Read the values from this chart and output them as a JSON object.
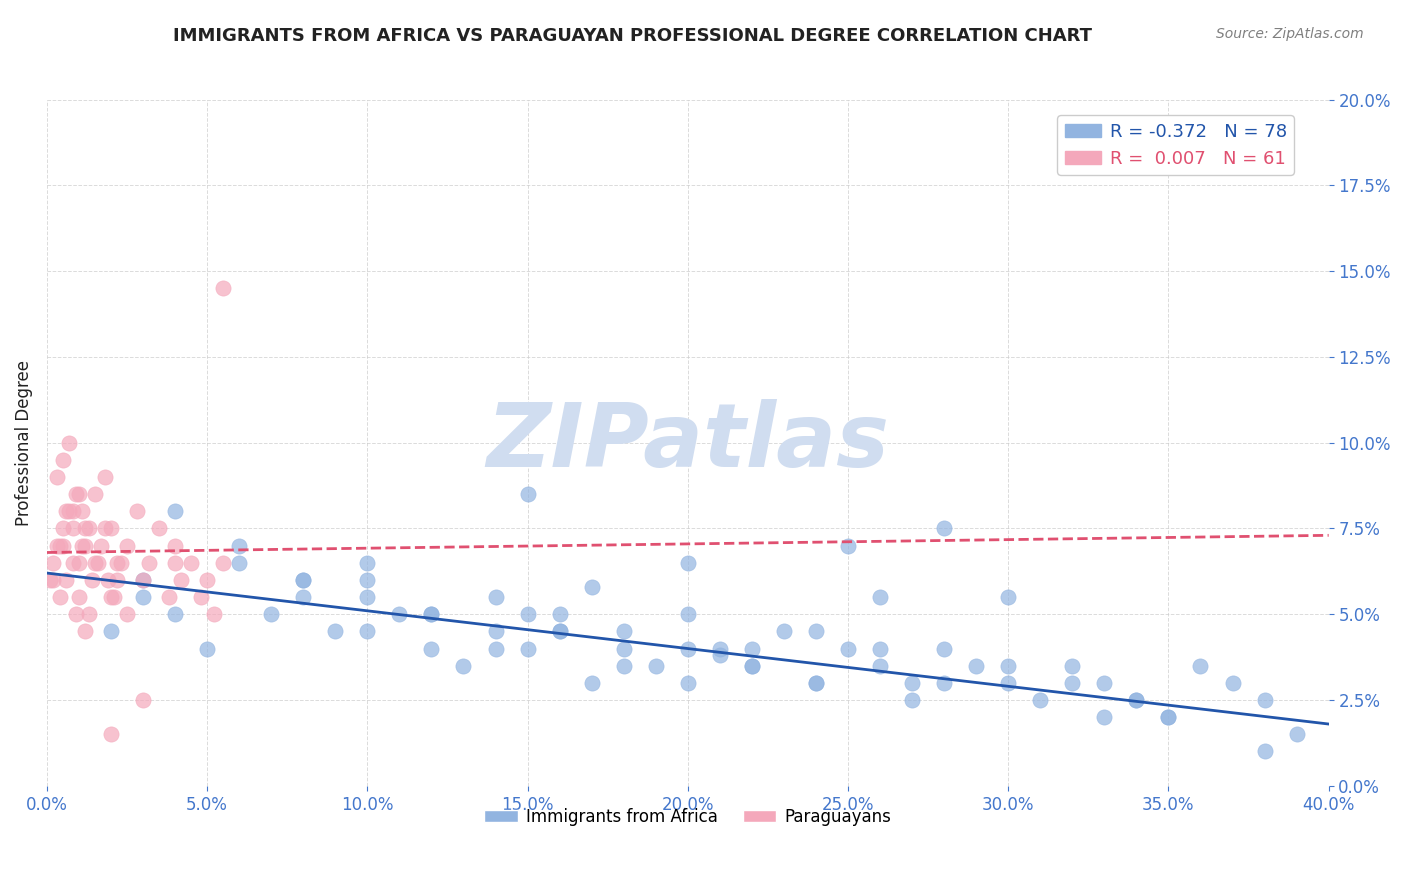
{
  "title": "IMMIGRANTS FROM AFRICA VS PARAGUAYAN PROFESSIONAL DEGREE CORRELATION CHART",
  "source": "Source: ZipAtlas.com",
  "xlabel_ticks": [
    "0.0%",
    "40.0%"
  ],
  "ylabel_label": "Professional Degree",
  "legend_blue_label": "Immigrants from Africa",
  "legend_pink_label": "Paraguayans",
  "blue_R": -0.372,
  "blue_N": 78,
  "pink_R": 0.007,
  "pink_N": 61,
  "xmin": 0.0,
  "xmax": 0.4,
  "ymin": 0.0,
  "ymax": 0.2,
  "blue_color": "#92b4e0",
  "pink_color": "#f4a8bb",
  "blue_line_color": "#2255aa",
  "pink_line_color": "#e05070",
  "watermark_color": "#d0ddf0",
  "background_color": "#ffffff",
  "grid_color": "#cccccc",
  "title_color": "#222222",
  "axis_label_color": "#4477cc",
  "blue_scatter_x": [
    0.02,
    0.03,
    0.05,
    0.07,
    0.08,
    0.09,
    0.1,
    0.11,
    0.12,
    0.13,
    0.14,
    0.15,
    0.15,
    0.16,
    0.17,
    0.18,
    0.19,
    0.2,
    0.21,
    0.22,
    0.23,
    0.24,
    0.25,
    0.26,
    0.27,
    0.28,
    0.29,
    0.3,
    0.31,
    0.32,
    0.33,
    0.34,
    0.35,
    0.36,
    0.37,
    0.38,
    0.39,
    0.03,
    0.04,
    0.06,
    0.08,
    0.1,
    0.12,
    0.14,
    0.16,
    0.18,
    0.2,
    0.22,
    0.24,
    0.26,
    0.04,
    0.06,
    0.08,
    0.1,
    0.12,
    0.14,
    0.16,
    0.18,
    0.2,
    0.22,
    0.24,
    0.26,
    0.28,
    0.3,
    0.32,
    0.34,
    0.15,
    0.25,
    0.35,
    0.28,
    0.2,
    0.3,
    0.38,
    0.1,
    0.21,
    0.33,
    0.17,
    0.27
  ],
  "blue_scatter_y": [
    0.045,
    0.055,
    0.04,
    0.05,
    0.06,
    0.045,
    0.055,
    0.05,
    0.04,
    0.035,
    0.045,
    0.05,
    0.04,
    0.045,
    0.03,
    0.04,
    0.035,
    0.03,
    0.04,
    0.035,
    0.045,
    0.03,
    0.04,
    0.035,
    0.025,
    0.03,
    0.035,
    0.03,
    0.025,
    0.035,
    0.03,
    0.025,
    0.02,
    0.035,
    0.03,
    0.025,
    0.015,
    0.06,
    0.05,
    0.065,
    0.055,
    0.045,
    0.05,
    0.04,
    0.045,
    0.035,
    0.04,
    0.035,
    0.03,
    0.04,
    0.08,
    0.07,
    0.06,
    0.065,
    0.05,
    0.055,
    0.05,
    0.045,
    0.05,
    0.04,
    0.045,
    0.055,
    0.04,
    0.035,
    0.03,
    0.025,
    0.085,
    0.07,
    0.02,
    0.075,
    0.065,
    0.055,
    0.01,
    0.06,
    0.038,
    0.02,
    0.058,
    0.03
  ],
  "pink_scatter_x": [
    0.005,
    0.008,
    0.01,
    0.012,
    0.015,
    0.018,
    0.02,
    0.022,
    0.025,
    0.028,
    0.03,
    0.032,
    0.035,
    0.038,
    0.04,
    0.042,
    0.045,
    0.048,
    0.05,
    0.052,
    0.055,
    0.002,
    0.004,
    0.006,
    0.008,
    0.01,
    0.012,
    0.014,
    0.016,
    0.018,
    0.02,
    0.022,
    0.003,
    0.005,
    0.007,
    0.009,
    0.011,
    0.013,
    0.015,
    0.017,
    0.019,
    0.021,
    0.023,
    0.025,
    0.001,
    0.002,
    0.003,
    0.004,
    0.005,
    0.006,
    0.007,
    0.008,
    0.009,
    0.01,
    0.011,
    0.012,
    0.013,
    0.055,
    0.04,
    0.03,
    0.02
  ],
  "pink_scatter_y": [
    0.07,
    0.08,
    0.065,
    0.075,
    0.085,
    0.09,
    0.075,
    0.065,
    0.07,
    0.08,
    0.06,
    0.065,
    0.075,
    0.055,
    0.07,
    0.06,
    0.065,
    0.055,
    0.06,
    0.05,
    0.065,
    0.06,
    0.07,
    0.08,
    0.075,
    0.085,
    0.07,
    0.06,
    0.065,
    0.075,
    0.055,
    0.06,
    0.09,
    0.095,
    0.1,
    0.085,
    0.08,
    0.075,
    0.065,
    0.07,
    0.06,
    0.055,
    0.065,
    0.05,
    0.06,
    0.065,
    0.07,
    0.055,
    0.075,
    0.06,
    0.08,
    0.065,
    0.05,
    0.055,
    0.07,
    0.045,
    0.05,
    0.145,
    0.065,
    0.025,
    0.015
  ],
  "blue_trend_x": [
    0.0,
    0.4
  ],
  "blue_trend_y": [
    0.062,
    0.018
  ],
  "pink_trend_x": [
    0.0,
    0.4
  ],
  "pink_trend_y": [
    0.068,
    0.073
  ]
}
